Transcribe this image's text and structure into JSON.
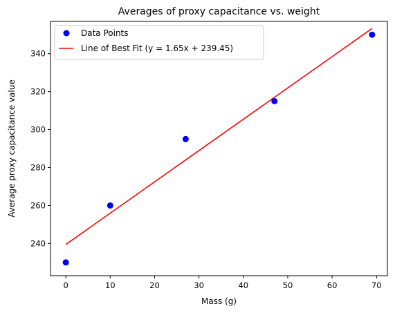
{
  "chart_data": {
    "type": "scatter",
    "title": "Averages of proxy capacitance vs. weight",
    "xlabel": "Mass (g)",
    "ylabel": "Average proxy capacitance value",
    "xlim": [
      -3.45,
      72.45
    ],
    "ylim": [
      223,
      357
    ],
    "xticks": [
      0,
      10,
      20,
      30,
      40,
      50,
      60,
      70
    ],
    "yticks": [
      240,
      260,
      280,
      300,
      320,
      340
    ],
    "legend_position": "upper-left",
    "series": [
      {
        "name": "Data Points",
        "kind": "scatter",
        "color": "#0000ff",
        "points": [
          {
            "x": 0,
            "y": 230
          },
          {
            "x": 10,
            "y": 260
          },
          {
            "x": 27,
            "y": 295
          },
          {
            "x": 47,
            "y": 315
          },
          {
            "x": 69,
            "y": 350
          }
        ]
      },
      {
        "name": "Line of Best Fit (y = 1.65x + 239.45)",
        "kind": "line",
        "color": "#ff0000",
        "slope": 1.65,
        "intercept": 239.45,
        "x_range": [
          0,
          69
        ]
      }
    ]
  }
}
